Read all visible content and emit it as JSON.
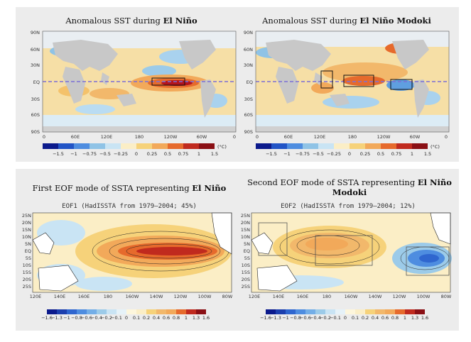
{
  "top_panels": [
    {
      "title_plain": "Anomalous SST during ",
      "title_bold": "El Niño",
      "lat_labels": [
        "90N",
        "60N",
        "30N",
        "EQ",
        "30S",
        "60S",
        "90S"
      ],
      "lon_labels": [
        "0",
        "60E",
        "120E",
        "180",
        "120W",
        "60W",
        "0"
      ],
      "colorbar": [
        "−1.5",
        "−1",
        "−0.75",
        "−0.5",
        "−0.25",
        "0",
        "0.25",
        "0.5",
        "0.75",
        "1",
        "1.5"
      ],
      "unit": "(°C)"
    },
    {
      "title_plain": "Anomalous SST during ",
      "title_bold": "El Niño Modoki",
      "lat_labels": [
        "90N",
        "60N",
        "30N",
        "EQ",
        "30S",
        "60S",
        "90S"
      ],
      "lon_labels": [
        "0",
        "60E",
        "120E",
        "180",
        "120W",
        "60W",
        "0"
      ],
      "colorbar": [
        "−1.5",
        "−1",
        "−0.75",
        "−0.5",
        "−0.25",
        "0",
        "0.25",
        "0.5",
        "0.75",
        "1",
        "1.5"
      ],
      "unit": "(°C)"
    }
  ],
  "bottom_panels": [
    {
      "title_plain": "First EOF mode of SSTA representing ",
      "title_bold": "El Niño",
      "map_title": "EOF1 (HadISSTA from 1979–2004; 45%)",
      "lat_labels": [
        "25N",
        "20N",
        "15N",
        "10N",
        "5N",
        "EQ",
        "5S",
        "10S",
        "15S",
        "20S",
        "25S"
      ],
      "lon_labels": [
        "120E",
        "140E",
        "160E",
        "180",
        "160W",
        "140W",
        "120W",
        "100W",
        "80W"
      ],
      "colorbar": [
        "−1.6",
        "−1.3",
        "−1",
        "−0.8",
        "−0.6",
        "−0.4",
        "−0.2",
        "−0.1",
        "0",
        "0.1",
        "0.2",
        "0.4",
        "0.6",
        "0.8",
        "1",
        "1.3",
        "1.6"
      ]
    },
    {
      "title_plain": "Second EOF mode of SSTA representing ",
      "title_bold": "El Niño Modoki",
      "map_title": "EOF2 (HadISSTA from 1979–2004; 12%)",
      "lat_labels": [
        "25N",
        "20N",
        "15N",
        "10N",
        "5N",
        "EQ",
        "5S",
        "10S",
        "15S",
        "20S",
        "25S"
      ],
      "lon_labels": [
        "120E",
        "140E",
        "160E",
        "180",
        "160W",
        "140W",
        "120W",
        "100W",
        "80W"
      ],
      "colorbar": [
        "−1.6",
        "−1.3",
        "−1",
        "−0.8",
        "−0.6",
        "−0.4",
        "−0.2",
        "−0.1",
        "0",
        "0.1",
        "0.2",
        "0.4",
        "0.6",
        "0.8",
        "1",
        "1.3",
        "1.6"
      ]
    }
  ],
  "colors": {
    "ocean_warm": "#f4c26b",
    "ocean_cool": "#7ab6df",
    "land": "#c8c8c8",
    "equator_line": "#7b6fd6",
    "hot": "#b4141c"
  }
}
